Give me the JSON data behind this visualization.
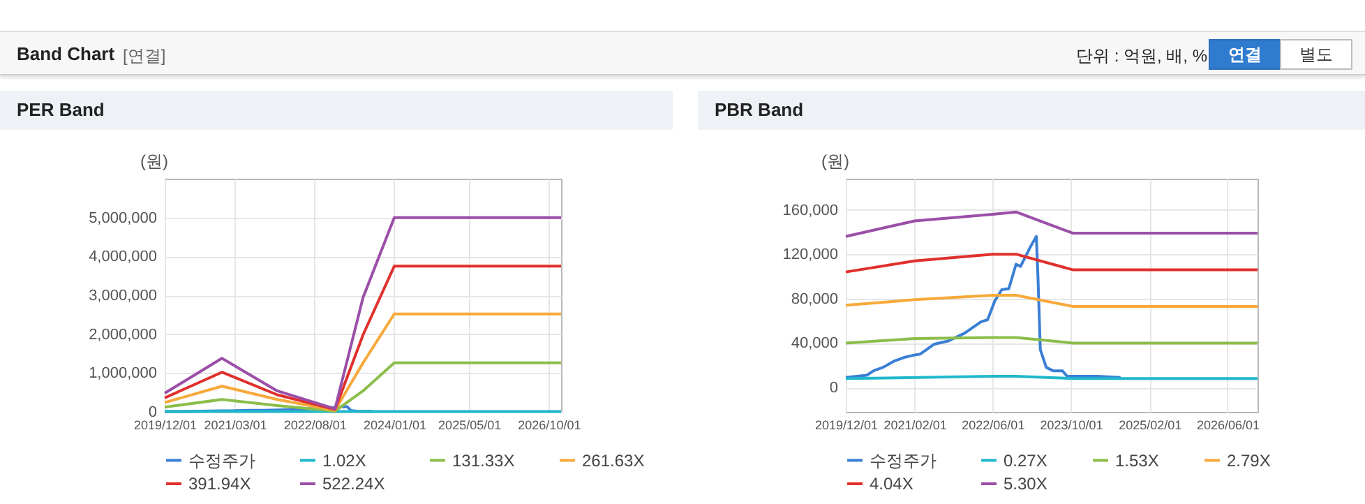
{
  "chart_data": [
    {
      "type": "other",
      "title": "Band Chart",
      "annotations": [
        "[연결]",
        "단위 : 억원, 배, %",
        "연결",
        "별도"
      ]
    },
    {
      "type": "line",
      "title": "PER Band",
      "ylabel": "(원)",
      "xlim": [
        "2019-12-01",
        "2026-12-20"
      ],
      "xticks": [
        {
          "value": "2019-12-01",
          "label": "2019/12/01"
        },
        {
          "value": "2021-03-01",
          "label": "2021/03/01"
        },
        {
          "value": "2022-08-01",
          "label": "2022/08/01"
        },
        {
          "value": "2024-01-01",
          "label": "2024/01/01"
        },
        {
          "value": "2025-05-01",
          "label": "2025/05/01"
        },
        {
          "value": "2026-10-01",
          "label": "2026/10/01"
        }
      ],
      "ylim": [
        0,
        6000000
      ],
      "yticks": [
        0,
        {
          "value": 1000000,
          "label": "1,000,000"
        },
        {
          "value": 2000000,
          "label": "2,000,000"
        },
        {
          "value": 3000000,
          "label": "3,000,000"
        },
        {
          "value": 4000000,
          "label": "4,000,000"
        },
        {
          "value": 5000000,
          "label": "5,000,000"
        }
      ],
      "grid": true,
      "legend": "bottom",
      "line_style": "solid",
      "series": [
        {
          "name": "수정주가",
          "color": "#3a7fd5",
          "x": [
            "2019-12-01",
            "2020-04-10",
            "2020-05-22",
            "2020-07-18",
            "2020-10-01",
            "2020-11-28",
            "2021-01-25",
            "2021-03-07",
            "2021-06-04",
            "2021-09-01",
            "2021-12-10",
            "2022-03-20",
            "2022-05-01",
            "2022-06-15",
            "2022-07-28",
            "2022-09-10",
            "2022-10-25",
            "2022-11-22",
            "2023-01-20",
            "2023-02-28",
            "2023-03-10",
            "2023-03-25",
            "2023-05-01",
            "2023-06-12",
            "2023-08-10"
          ],
          "values": [
            9000,
            11000,
            15000,
            18000,
            24000,
            27000,
            29000,
            30000,
            39000,
            42000,
            49000,
            59000,
            61000,
            78000,
            88000,
            89000,
            111000,
            109000,
            126000,
            136000,
            101000,
            34000,
            18000,
            15000,
            15000
          ]
        },
        {
          "name": "1.02X",
          "color": "#1fb8cc",
          "x": [
            "2019-12-01",
            "2020-12-07",
            "2021-12-01",
            "2022-12-12",
            "2024-01-01",
            "2026-12-20"
          ],
          "values": [
            10000,
            10000,
            10000,
            10000,
            10000,
            10000
          ]
        },
        {
          "name": "131.33X",
          "color": "#8bbd4a",
          "x": [
            "2019-12-01",
            "2020-12-07",
            "2021-12-01",
            "2022-12-12",
            "2023-06-12",
            "2024-01-01",
            "2026-12-20"
          ],
          "values": [
            120000,
            320000,
            160000,
            20000,
            540000,
            1260000,
            1260000
          ]
        },
        {
          "name": "261.63X",
          "color": "#f7a93b",
          "x": [
            "2019-12-01",
            "2020-12-07",
            "2021-12-01",
            "2022-12-12",
            "2023-06-12",
            "2024-01-01",
            "2026-12-20"
          ],
          "values": [
            240000,
            660000,
            320000,
            40000,
            1260000,
            2520000,
            2520000
          ]
        },
        {
          "name": "391.94X",
          "color": "#e0302c",
          "x": [
            "2019-12-01",
            "2020-12-07",
            "2021-12-01",
            "2022-12-12",
            "2023-06-12",
            "2024-01-01",
            "2026-12-20"
          ],
          "values": [
            360000,
            1020000,
            440000,
            60000,
            1980000,
            3750000,
            3750000
          ]
        },
        {
          "name": "522.24X",
          "color": "#9b4fa8",
          "x": [
            "2019-12-01",
            "2020-12-07",
            "2021-12-01",
            "2022-12-12",
            "2023-06-12",
            "2024-01-01",
            "2026-12-20"
          ],
          "values": [
            480000,
            1380000,
            540000,
            80000,
            2940000,
            5000000,
            5000000
          ]
        }
      ]
    },
    {
      "type": "line",
      "title": "PBR Band",
      "ylabel": "(원)",
      "xlim": [
        "2019-12-01",
        "2026-12-05"
      ],
      "xticks": [
        {
          "value": "2019-12-01",
          "label": "2019/12/01"
        },
        {
          "value": "2021-02-01",
          "label": "2021/02/01"
        },
        {
          "value": "2022-06-01",
          "label": "2022/06/01"
        },
        {
          "value": "2023-10-01",
          "label": "2023/10/01"
        },
        {
          "value": "2025-02-01",
          "label": "2025/02/01"
        },
        {
          "value": "2026-06-01",
          "label": "2026/06/01"
        }
      ],
      "ylim": [
        -22000,
        188000
      ],
      "yticks": [
        0,
        {
          "value": 40000,
          "label": "40,000"
        },
        {
          "value": 80000,
          "label": "80,000"
        },
        {
          "value": 120000,
          "label": "120,000"
        },
        {
          "value": 160000,
          "label": "160,000"
        }
      ],
      "grid": true,
      "legend": "bottom",
      "line_style": "solid",
      "series": [
        {
          "name": "수정주가",
          "color": "#3a7fd5",
          "x": [
            "2019-12-01",
            "2020-04-10",
            "2020-05-22",
            "2020-07-18",
            "2020-10-01",
            "2020-11-28",
            "2021-01-25",
            "2021-03-07",
            "2021-06-04",
            "2021-09-01",
            "2021-12-10",
            "2022-03-20",
            "2022-05-01",
            "2022-06-15",
            "2022-07-28",
            "2022-09-10",
            "2022-10-25",
            "2022-11-22",
            "2023-01-20",
            "2023-02-28",
            "2023-03-10",
            "2023-03-25",
            "2023-05-01",
            "2023-06-12",
            "2023-08-10",
            "2023-09-07",
            "2023-11-20",
            "2024-03-12",
            "2024-08-05"
          ],
          "values": [
            9000,
            11000,
            15000,
            18000,
            24000,
            27000,
            29000,
            30000,
            39000,
            42000,
            49000,
            59000,
            61000,
            78000,
            88000,
            89000,
            111000,
            109000,
            126000,
            136000,
            101000,
            34000,
            18000,
            15000,
            15000,
            10000,
            10000,
            10000,
            9000
          ]
        },
        {
          "name": "0.27X",
          "color": "#1fb8cc",
          "x": [
            "2019-12-01",
            "2022-06-01",
            "2022-10-25",
            "2023-10-12",
            "2026-12-05"
          ],
          "values": [
            8000,
            10000,
            10000,
            8000,
            8000
          ]
        },
        {
          "name": "1.53X",
          "color": "#8bbd4a",
          "x": [
            "2019-12-01",
            "2021-02-01",
            "2022-06-01",
            "2022-10-25",
            "2023-10-12",
            "2026-12-05"
          ],
          "values": [
            40000,
            44000,
            45000,
            45000,
            40000,
            40000
          ]
        },
        {
          "name": "2.79X",
          "color": "#f7a93b",
          "x": [
            "2019-12-01",
            "2021-02-01",
            "2022-06-01",
            "2022-10-25",
            "2023-10-12",
            "2026-12-05"
          ],
          "values": [
            74000,
            79000,
            83000,
            83000,
            73000,
            73000
          ]
        },
        {
          "name": "4.04X",
          "color": "#e0302c",
          "x": [
            "2019-12-01",
            "2021-02-01",
            "2022-06-01",
            "2022-10-25",
            "2023-10-12",
            "2026-12-05"
          ],
          "values": [
            104000,
            114000,
            120000,
            120000,
            106000,
            106000
          ]
        },
        {
          "name": "5.30X",
          "color": "#9b4fa8",
          "x": [
            "2019-12-01",
            "2021-02-01",
            "2022-06-01",
            "2022-10-25",
            "2023-10-12",
            "2026-12-05"
          ],
          "values": [
            136000,
            150000,
            156000,
            158000,
            139000,
            139000
          ]
        }
      ]
    }
  ]
}
